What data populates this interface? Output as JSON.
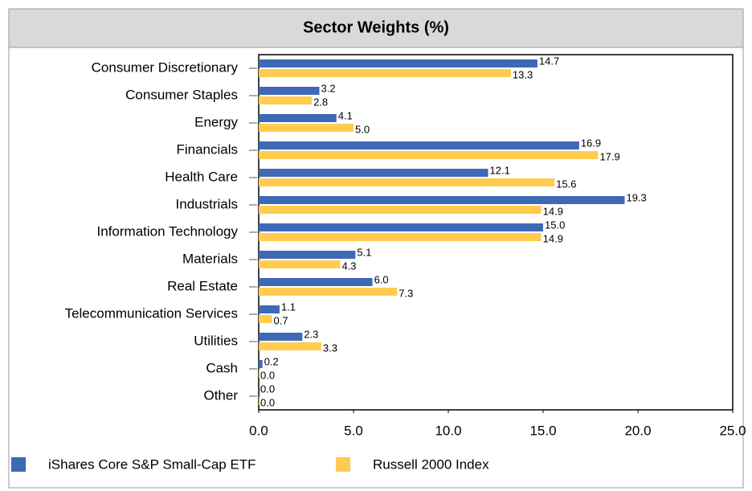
{
  "chart_data": {
    "type": "bar",
    "orientation": "horizontal",
    "title": "Sector Weights (%)",
    "categories": [
      "Consumer Discretionary",
      "Consumer Staples",
      "Energy",
      "Financials",
      "Health Care",
      "Industrials",
      "Information Technology",
      "Materials",
      "Real Estate",
      "Telecommunication Services",
      "Utilities",
      "Cash",
      "Other"
    ],
    "series": [
      {
        "name": "iShares Core S&P Small-Cap ETF",
        "color": "#3e69b5",
        "values": [
          14.7,
          3.2,
          4.1,
          16.9,
          12.1,
          19.3,
          15.0,
          5.1,
          6.0,
          1.1,
          2.3,
          0.2,
          0.0
        ],
        "value_labels": [
          "14.7",
          "3.2",
          "4.1",
          "16.9",
          "12.1",
          "19.3",
          "15.0",
          "5.1",
          "6.0",
          "1.1",
          "2.3",
          "0.2",
          "0.0"
        ]
      },
      {
        "name": "Russell 2000 Index",
        "color": "#ffcc4f",
        "values": [
          13.3,
          2.8,
          5.0,
          17.9,
          15.6,
          14.9,
          14.9,
          4.3,
          7.3,
          0.7,
          3.3,
          0.0,
          0.0
        ],
        "value_labels": [
          "13.3",
          "2.8",
          "5.0",
          "17.9",
          "15.6",
          "14.9",
          "14.9",
          "4.3",
          "7.3",
          "0.7",
          "3.3",
          "0.0",
          "0.0"
        ]
      }
    ],
    "xlim": [
      0,
      25
    ],
    "xticks": [
      {
        "value": 0,
        "label": "0.0"
      },
      {
        "value": 5,
        "label": "5.0"
      },
      {
        "value": 10,
        "label": "10.0"
      },
      {
        "value": 15,
        "label": "15.0"
      },
      {
        "value": 20,
        "label": "20.0"
      },
      {
        "value": 25,
        "label": "25.0"
      }
    ]
  }
}
